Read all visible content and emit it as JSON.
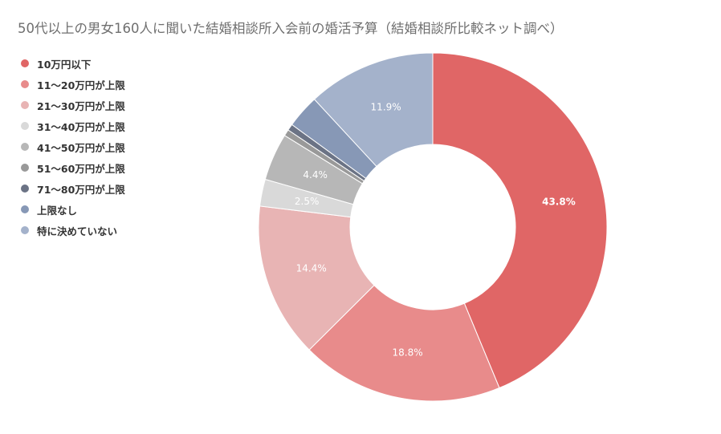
{
  "chart_data": {
    "type": "pie",
    "variant": "donut",
    "title": "50代以上の男女160人に聞いた結婚相談所入会前の婚活予算（結婚相談所比較ネット調べ）",
    "categories": [
      "10万円以下",
      "11～20万円が上限",
      "21～30万円が上限",
      "31～40万円が上限",
      "41～50万円が上限",
      "51～60万円が上限",
      "71～80万円が上限",
      "上限なし",
      "特に決めていない"
    ],
    "values": [
      43.8,
      18.8,
      14.4,
      2.5,
      4.4,
      0.6,
      0.6,
      3.1,
      11.9
    ],
    "data_labels": [
      "43.8%",
      "18.8%",
      "14.4%",
      "2.5%",
      "4.4%",
      "",
      "",
      "",
      "11.9%"
    ],
    "colors": [
      "#e06666",
      "#e88b8b",
      "#e8b4b4",
      "#d9d9d9",
      "#b7b7b7",
      "#999999",
      "#6b7385",
      "#8798b6",
      "#a4b2cb"
    ],
    "label_colors": [
      "#ffffff",
      "#ffffff",
      "#ffffff",
      "#ffffff",
      "#ffffff",
      "#ffffff",
      "#ffffff",
      "#ffffff",
      "#ffffff"
    ],
    "legend_position": "left"
  }
}
